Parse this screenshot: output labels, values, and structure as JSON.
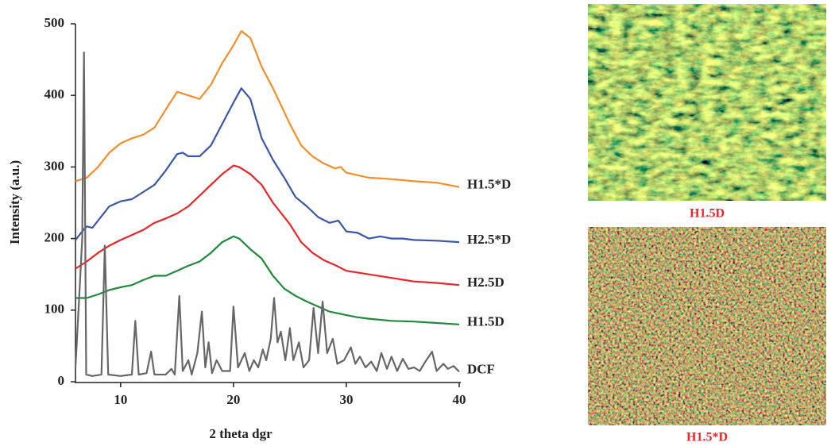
{
  "chart_data": {
    "type": "line",
    "xlabel": "2 theta dgr",
    "ylabel": "Intensity (a.u.)",
    "xlim": [
      6,
      40
    ],
    "ylim": [
      0,
      500
    ],
    "xticks": [
      10,
      20,
      30,
      40
    ],
    "yticks": [
      0,
      100,
      200,
      300,
      400,
      500
    ],
    "series": [
      {
        "name": "H1.5*D",
        "color": "#f28e2b",
        "x": [
          6,
          7,
          8,
          9,
          10,
          11,
          12,
          13,
          14,
          15,
          16,
          17,
          18,
          19,
          20,
          20.7,
          21.5,
          22.5,
          23.5,
          25,
          26,
          27,
          28,
          29,
          29.5,
          30,
          32,
          34,
          36,
          38,
          40
        ],
        "values": [
          280,
          285,
          300,
          320,
          333,
          340,
          345,
          355,
          380,
          405,
          400,
          395,
          415,
          445,
          470,
          490,
          480,
          440,
          410,
          360,
          330,
          315,
          305,
          298,
          300,
          292,
          285,
          283,
          280,
          278,
          272
        ]
      },
      {
        "name": "H2.5*D",
        "color": "#3a57a7",
        "x": [
          6,
          6.7,
          7,
          7.5,
          8,
          9,
          10,
          11,
          12,
          13,
          14,
          15,
          15.5,
          16,
          17,
          18,
          19,
          20,
          20.7,
          21.5,
          22.5,
          23.5,
          24.5,
          25.5,
          26.5,
          27.5,
          28.5,
          29.3,
          30,
          31,
          32,
          33,
          34,
          35,
          36,
          38,
          40
        ],
        "values": [
          198,
          212,
          217,
          215,
          225,
          245,
          252,
          255,
          265,
          275,
          295,
          318,
          320,
          315,
          315,
          330,
          360,
          390,
          410,
          395,
          340,
          310,
          285,
          258,
          245,
          230,
          222,
          225,
          210,
          208,
          200,
          203,
          200,
          200,
          198,
          197,
          195
        ]
      },
      {
        "name": "H2.5D",
        "color": "#e8262a",
        "x": [
          6,
          7,
          8,
          9,
          10,
          11,
          12,
          13,
          14,
          15,
          16,
          17,
          18,
          19,
          20,
          20.5,
          21.5,
          22.5,
          23.5,
          25,
          26,
          27,
          28,
          29,
          30,
          32,
          34,
          36,
          38,
          40
        ],
        "values": [
          158,
          168,
          180,
          190,
          198,
          205,
          212,
          222,
          228,
          235,
          245,
          260,
          275,
          290,
          302,
          300,
          290,
          275,
          250,
          220,
          195,
          180,
          170,
          163,
          155,
          150,
          145,
          140,
          138,
          135
        ]
      },
      {
        "name": "H1.5D",
        "color": "#1f8a3c",
        "x": [
          6,
          7,
          8,
          9,
          10,
          11,
          12,
          13,
          14,
          15,
          16,
          17,
          18,
          19,
          20,
          20.5,
          21.5,
          22.5,
          23.5,
          24.5,
          25.5,
          26.5,
          27.5,
          28.5,
          30,
          31,
          32,
          34,
          36,
          38,
          40
        ],
        "values": [
          117,
          117,
          122,
          128,
          132,
          135,
          142,
          148,
          148,
          155,
          162,
          168,
          180,
          195,
          203,
          200,
          185,
          172,
          148,
          130,
          120,
          112,
          105,
          98,
          93,
          90,
          88,
          85,
          84,
          82,
          80
        ]
      },
      {
        "name": "DCF",
        "color": "#666666",
        "x": [
          6,
          6.3,
          6.6,
          6.75,
          6.95,
          7.5,
          8.3,
          8.6,
          8.9,
          10,
          11,
          11.3,
          11.6,
          12.3,
          12.7,
          13,
          14,
          14.5,
          14.8,
          15.2,
          15.5,
          16,
          16.3,
          16.8,
          17.2,
          17.5,
          17.8,
          18.1,
          18.5,
          19,
          19.7,
          20,
          20.4,
          21,
          21.4,
          21.8,
          22.2,
          22.6,
          22.9,
          23.3,
          23.6,
          23.9,
          24.2,
          24.6,
          25,
          25.3,
          25.8,
          26.2,
          26.7,
          27.1,
          27.5,
          27.9,
          28.3,
          28.8,
          29.2,
          29.8,
          30.4,
          30.8,
          31.2,
          31.7,
          32.2,
          32.7,
          33.1,
          33.6,
          34,
          34.5,
          35,
          35.5,
          36,
          36.5,
          37,
          37.6,
          38,
          38.6,
          39,
          39.5,
          40
        ],
        "values": [
          20,
          110,
          200,
          460,
          10,
          8,
          10,
          190,
          10,
          8,
          10,
          85,
          10,
          12,
          42,
          10,
          10,
          18,
          10,
          120,
          15,
          30,
          10,
          40,
          98,
          20,
          55,
          12,
          30,
          15,
          15,
          105,
          20,
          40,
          15,
          30,
          20,
          45,
          30,
          60,
          117,
          55,
          70,
          30,
          75,
          30,
          55,
          20,
          30,
          103,
          40,
          112,
          40,
          60,
          25,
          30,
          48,
          25,
          35,
          20,
          28,
          15,
          40,
          18,
          35,
          15,
          32,
          18,
          20,
          15,
          28,
          42,
          15,
          25,
          18,
          22,
          14
        ]
      }
    ]
  },
  "panels": [
    {
      "caption": "H1.5D"
    },
    {
      "caption": "H1.5*D"
    }
  ]
}
